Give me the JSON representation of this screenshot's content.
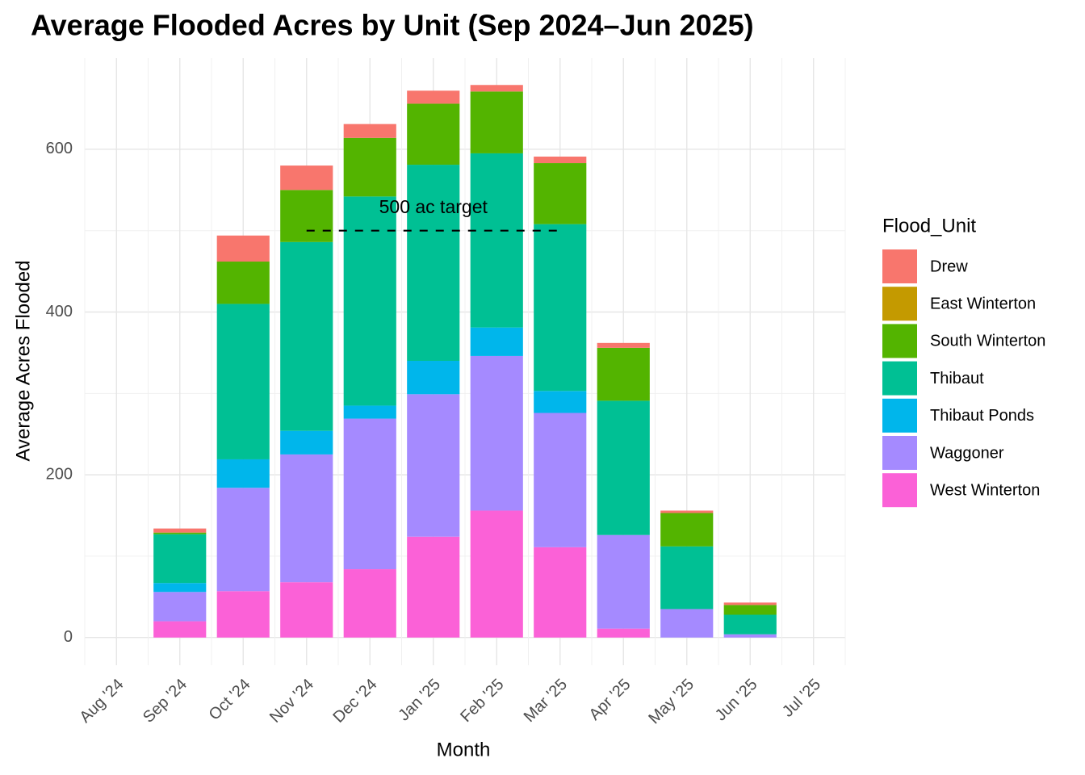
{
  "chart_data": {
    "type": "bar",
    "stacked": true,
    "title": "Average Flooded Acres by Unit (Sep 2024–Jun 2025)",
    "x_label": "Month",
    "y_label": "Average Acres Flooded",
    "legend_title": "Flood_Unit",
    "categories": [
      "Aug '24",
      "Sep '24",
      "Oct '24",
      "Nov '24",
      "Dec '24",
      "Jan '25",
      "Feb '25",
      "Mar '25",
      "Apr '25",
      "May '25",
      "Jun '25",
      "Jul '25"
    ],
    "series": [
      {
        "name": "Drew",
        "color": "#F8766D",
        "values": [
          null,
          5,
          32,
          30,
          17,
          16,
          8,
          8,
          6,
          3,
          3,
          null
        ]
      },
      {
        "name": "East Winterton",
        "color": "#C49A00",
        "values": [
          null,
          0,
          0,
          0,
          0,
          0,
          0,
          0,
          0,
          0,
          0,
          null
        ]
      },
      {
        "name": "South Winterton",
        "color": "#53B400",
        "values": [
          null,
          2,
          52,
          64,
          72,
          75,
          76,
          75,
          65,
          41,
          12,
          null
        ]
      },
      {
        "name": "Thibaut",
        "color": "#00C094",
        "values": [
          null,
          60,
          191,
          232,
          257,
          241,
          214,
          205,
          165,
          77,
          24,
          null
        ]
      },
      {
        "name": "Thibaut Ponds",
        "color": "#00B6EB",
        "values": [
          null,
          11,
          35,
          29,
          16,
          41,
          35,
          27,
          0,
          0,
          0,
          null
        ]
      },
      {
        "name": "Waggoner",
        "color": "#A58AFF",
        "values": [
          null,
          36,
          127,
          157,
          185,
          175,
          190,
          165,
          115,
          35,
          4,
          null
        ]
      },
      {
        "name": "West Winterton",
        "color": "#FB61D7",
        "values": [
          null,
          20,
          57,
          68,
          84,
          124,
          156,
          111,
          11,
          0,
          0,
          null
        ]
      }
    ],
    "annotations": [
      {
        "text": "500 ac target",
        "value": 500,
        "from": "Nov '24",
        "to": "Mar '25"
      }
    ],
    "ylim": [
      -34,
      712
    ],
    "yticks": [
      0,
      200,
      400,
      600
    ],
    "grid": true,
    "legend": "right"
  }
}
